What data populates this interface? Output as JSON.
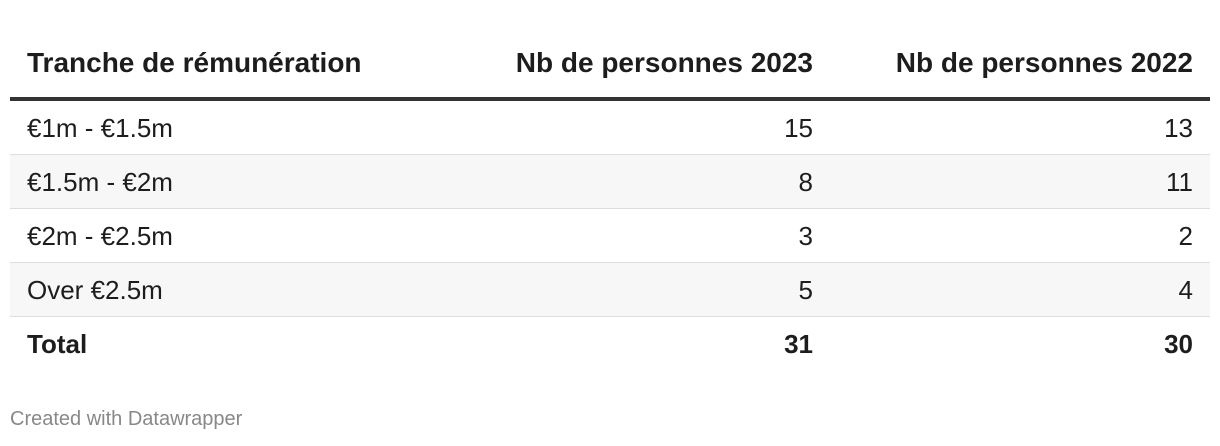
{
  "table": {
    "headers": [
      "Tranche de rémunération",
      "Nb de personnes 2023",
      "Nb de personnes 2022"
    ],
    "rows": [
      [
        "€1m - €1.5m",
        15,
        13
      ],
      [
        "€1.5m - €2m",
        8,
        11
      ],
      [
        "€2m - €2.5m",
        3,
        2
      ],
      [
        "Over €2.5m",
        5,
        4
      ]
    ],
    "total": [
      "Total",
      31,
      30
    ]
  },
  "footer": {
    "credit": "Created with Datawrapper"
  }
}
